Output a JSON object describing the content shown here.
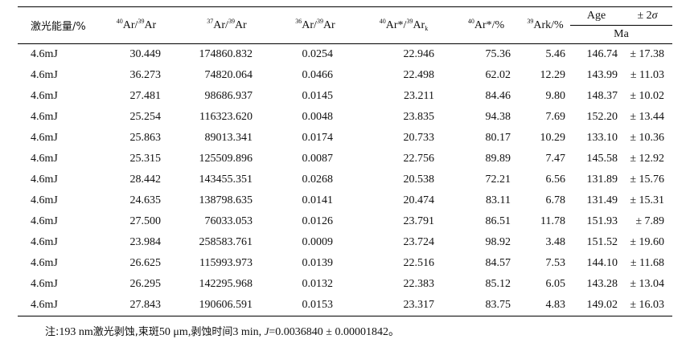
{
  "headers": {
    "energy": "激光能量/%",
    "r4039_iso1": "40",
    "r4039_text1": "Ar/",
    "r4039_iso2": "39",
    "r4039_text2": "Ar",
    "r3739_iso1": "37",
    "r3739_text1": "Ar/",
    "r3739_iso2": "39",
    "r3739_text2": "Ar",
    "r3639_iso1": "36",
    "r3639_text1": "Ar/",
    "r3639_iso2": "39",
    "r3639_text2": "Ar",
    "r40k_iso1": "40",
    "r40k_text1": "Ar*/",
    "r40k_iso2": "39",
    "r40k_text2": "Ar",
    "r40k_sub": "k",
    "ar40p_iso": "40",
    "ar40p_text": "Ar*/%",
    "ark_iso": "39",
    "ark_text": "Ark/%",
    "age": "Age",
    "err_pm": "± 2",
    "err_sigma": "σ",
    "unit": "Ma"
  },
  "rows": [
    {
      "energy": "4.6mJ",
      "r4039": "30.449",
      "r3739": "174860.832",
      "r3639": "0.0254",
      "r40k": "22.946",
      "ar40p": "75.36",
      "ark": "5.46",
      "age": "146.74",
      "err": "± 17.38"
    },
    {
      "energy": "4.6mJ",
      "r4039": "36.273",
      "r3739": "74820.064",
      "r3639": "0.0466",
      "r40k": "22.498",
      "ar40p": "62.02",
      "ark": "12.29",
      "age": "143.99",
      "err": "± 11.03"
    },
    {
      "energy": "4.6mJ",
      "r4039": "27.481",
      "r3739": "98686.937",
      "r3639": "0.0145",
      "r40k": "23.211",
      "ar40p": "84.46",
      "ark": "9.80",
      "age": "148.37",
      "err": "± 10.02"
    },
    {
      "energy": "4.6mJ",
      "r4039": "25.254",
      "r3739": "116323.620",
      "r3639": "0.0048",
      "r40k": "23.835",
      "ar40p": "94.38",
      "ark": "7.69",
      "age": "152.20",
      "err": "± 13.44"
    },
    {
      "energy": "4.6mJ",
      "r4039": "25.863",
      "r3739": "89013.341",
      "r3639": "0.0174",
      "r40k": "20.733",
      "ar40p": "80.17",
      "ark": "10.29",
      "age": "133.10",
      "err": "± 10.36"
    },
    {
      "energy": "4.6mJ",
      "r4039": "25.315",
      "r3739": "125509.896",
      "r3639": "0.0087",
      "r40k": "22.756",
      "ar40p": "89.89",
      "ark": "7.47",
      "age": "145.58",
      "err": "± 12.92"
    },
    {
      "energy": "4.6mJ",
      "r4039": "28.442",
      "r3739": "143455.351",
      "r3639": "0.0268",
      "r40k": "20.538",
      "ar40p": "72.21",
      "ark": "6.56",
      "age": "131.89",
      "err": "± 15.76"
    },
    {
      "energy": "4.6mJ",
      "r4039": "24.635",
      "r3739": "138798.635",
      "r3639": "0.0141",
      "r40k": "20.474",
      "ar40p": "83.11",
      "ark": "6.78",
      "age": "131.49",
      "err": "± 15.31"
    },
    {
      "energy": "4.6mJ",
      "r4039": "27.500",
      "r3739": "76033.053",
      "r3639": "0.0126",
      "r40k": "23.791",
      "ar40p": "86.51",
      "ark": "11.78",
      "age": "151.93",
      "err": "± 7.89"
    },
    {
      "energy": "4.6mJ",
      "r4039": "23.984",
      "r3739": "258583.761",
      "r3639": "0.0009",
      "r40k": "23.724",
      "ar40p": "98.92",
      "ark": "3.48",
      "age": "151.52",
      "err": "± 19.60"
    },
    {
      "energy": "4.6mJ",
      "r4039": "26.625",
      "r3739": "115993.973",
      "r3639": "0.0139",
      "r40k": "22.516",
      "ar40p": "84.57",
      "ark": "7.53",
      "age": "144.10",
      "err": "± 11.68"
    },
    {
      "energy": "4.6mJ",
      "r4039": "26.295",
      "r3739": "142295.968",
      "r3639": "0.0132",
      "r40k": "22.383",
      "ar40p": "85.12",
      "ark": "6.05",
      "age": "143.28",
      "err": "± 13.04"
    },
    {
      "energy": "4.6mJ",
      "r4039": "27.843",
      "r3739": "190606.591",
      "r3639": "0.0153",
      "r40k": "23.317",
      "ar40p": "83.75",
      "ark": "4.83",
      "age": "149.02",
      "err": "± 16.03"
    }
  ],
  "note": {
    "lead": "注:",
    "p1": "193 nm",
    "p2": "激光剥蚀,束斑",
    "p3": "50 μm,",
    "p4": "剥蚀时间",
    "p5": "3 min, ",
    "j": "J",
    "p6": "=0.0036840 ± 0.00001842。"
  }
}
